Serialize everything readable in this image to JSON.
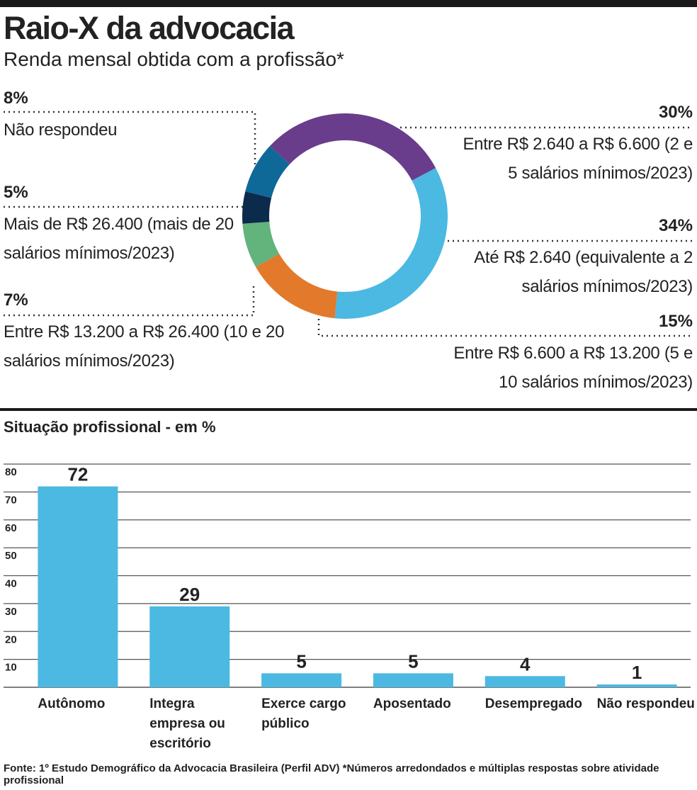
{
  "title": "Raio-X da advocacia",
  "chart_data": [
    {
      "type": "donut",
      "subtitle": "Renda mensal obtida com a profissão*",
      "categories": [
        "Entre R$ 2.640 a R$ 6.600 (2 e 5 salários mínimos/2023)",
        "Até R$ 2.640 (equivalente a 2 salários mínimos/2023)",
        "Entre R$ 6.600 a R$ 13.200 (5 e 10 salários mínimos/2023)",
        "Entre R$ 13.200 a R$ 26.400 (10 e 20 salários mínimos/2023)",
        "Mais de R$ 26.400 (mais de 20 salários mínimos/2023)",
        "Não respondeu"
      ],
      "values": [
        30,
        34,
        15,
        7,
        5,
        8
      ],
      "value_labels": [
        "30%",
        "34%",
        "15%",
        "7%",
        "5%",
        "8%"
      ],
      "colors": [
        "#693d8c",
        "#4bb9e2",
        "#e2792b",
        "#63b37c",
        "#0c2a4b",
        "#0e6898"
      ]
    },
    {
      "type": "bar",
      "title": "Situação profissional - em %",
      "categories": [
        "Autônomo",
        "Integra empresa ou escritório",
        "Exerce cargo público",
        "Aposentado",
        "Desempregado",
        "Não respondeu"
      ],
      "values": [
        72,
        29,
        5,
        5,
        4,
        1
      ],
      "color": "#4bb9e2",
      "ylim": [
        0,
        80
      ],
      "yticks": [
        10,
        20,
        30,
        40,
        50,
        60,
        70,
        80
      ],
      "grid": true
    }
  ],
  "source": "Fonte: 1º Estudo Demográfico da Advocacia Brasileira (Perfil ADV) *Números arredondados e múltiplas respostas sobre atividade profissional"
}
